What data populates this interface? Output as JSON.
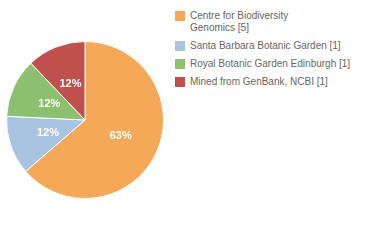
{
  "chart_data": {
    "type": "pie",
    "categories": [
      "Centre for Biodiversity\nGenomics [5]",
      "Santa Barbara Botanic Garden [1]",
      "Royal Botanic Garden Edinburgh [1]",
      "Mined from GenBank, NCBI [1]"
    ],
    "values": [
      63,
      12,
      12,
      12
    ],
    "value_labels": [
      "63%",
      "12%",
      "12%",
      "12%"
    ],
    "colors": [
      "#F5A857",
      "#A8C4E0",
      "#8CC070",
      "#C0504D"
    ],
    "data_labels": true,
    "legend": "right"
  }
}
